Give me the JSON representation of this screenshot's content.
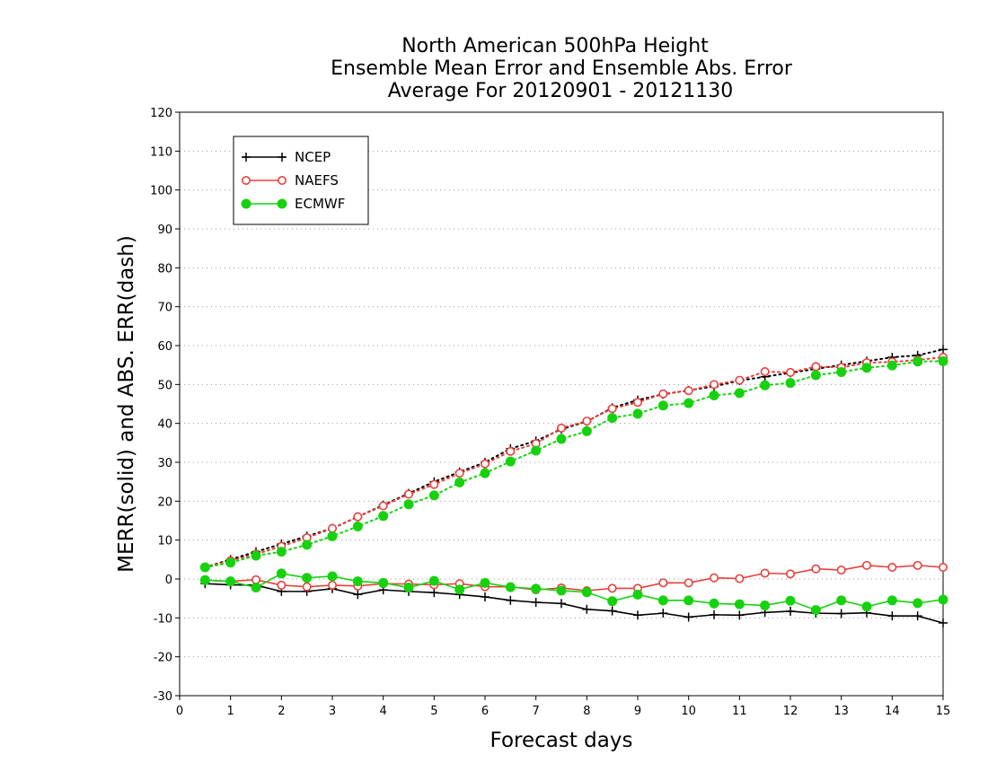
{
  "chart_data": {
    "type": "line",
    "title_lines": [
      "North American 500hPa Height",
      "Ensemble Mean Error and Ensemble Abs. Error",
      "Average For 20120901 - 20121130"
    ],
    "xlabel": "Forecast days",
    "ylabel": "MERR(solid) and ABS. ERR(dash)",
    "xlim": [
      0,
      15
    ],
    "ylim": [
      -30,
      120
    ],
    "xticks": [
      0,
      1,
      2,
      3,
      4,
      5,
      6,
      7,
      8,
      9,
      10,
      11,
      12,
      13,
      14,
      15
    ],
    "yticks": [
      -30,
      -20,
      -10,
      0,
      10,
      20,
      30,
      40,
      50,
      60,
      70,
      80,
      90,
      100,
      110,
      120
    ],
    "grid": "horizontal dotted",
    "legend_position": "top-left",
    "x": [
      0.5,
      1.0,
      1.5,
      2.0,
      2.5,
      3.0,
      3.5,
      4.0,
      4.5,
      5.0,
      5.5,
      6.0,
      6.5,
      7.0,
      7.5,
      8.0,
      8.5,
      9.0,
      9.5,
      10.0,
      10.5,
      11.0,
      11.5,
      12.0,
      12.5,
      13.0,
      13.5,
      14.0,
      14.5,
      15.0
    ],
    "series": [
      {
        "name": "NCEP",
        "color": "#000000",
        "marker": "plus",
        "mean_error": [
          -1.2,
          -1.5,
          -1.6,
          -3.2,
          -3.2,
          -2.5,
          -4.0,
          -2.8,
          -3.2,
          -3.5,
          -4.0,
          -4.6,
          -5.5,
          -6.0,
          -6.3,
          -7.8,
          -8.2,
          -9.3,
          -8.8,
          -9.8,
          -9.2,
          -9.3,
          -8.6,
          -8.3,
          -8.8,
          -8.9,
          -8.7,
          -9.5,
          -9.5,
          -11.3
        ],
        "abs_error": [
          3.0,
          5.0,
          7.0,
          9.0,
          11.0,
          13.0,
          16.0,
          19.0,
          22.0,
          25.0,
          27.5,
          30.0,
          33.5,
          35.5,
          38.5,
          40.5,
          44.0,
          46.0,
          47.5,
          48.5,
          49.5,
          51.0,
          52.0,
          53.0,
          54.0,
          55.0,
          56.0,
          57.0,
          57.5,
          59.0
        ]
      },
      {
        "name": "NAEFS",
        "color": "#e8403c",
        "marker": "open-circle",
        "mean_error": [
          -0.3,
          -0.6,
          -0.2,
          -1.6,
          -2.0,
          -1.6,
          -1.8,
          -1.2,
          -1.3,
          -1.5,
          -1.2,
          -2.0,
          -2.0,
          -2.8,
          -2.3,
          -3.0,
          -2.4,
          -2.4,
          -1.0,
          -1.0,
          0.3,
          0.1,
          1.5,
          1.3,
          2.6,
          2.3,
          3.5,
          3.0,
          3.5,
          3.0
        ],
        "abs_error": [
          3.0,
          4.7,
          6.4,
          8.4,
          10.6,
          13.0,
          16.0,
          18.8,
          21.8,
          24.3,
          27.2,
          29.6,
          32.8,
          34.8,
          38.8,
          40.6,
          43.8,
          45.4,
          47.6,
          48.4,
          50.0,
          51.1,
          53.3,
          53.1,
          54.6,
          54.4,
          55.6,
          55.8,
          56.3,
          57.0
        ]
      },
      {
        "name": "ECMWF",
        "color": "#16d20e",
        "marker": "filled-circle",
        "mean_error": [
          -0.3,
          -0.6,
          -2.2,
          1.4,
          0.3,
          0.7,
          -0.6,
          -1.0,
          -2.2,
          -0.5,
          -2.7,
          -1.0,
          -2.1,
          -2.5,
          -3.0,
          -3.4,
          -5.7,
          -4.0,
          -5.5,
          -5.5,
          -6.3,
          -6.5,
          -6.8,
          -5.6,
          -8.0,
          -5.5,
          -7.1,
          -5.5,
          -6.2,
          -5.3
        ],
        "abs_error": [
          3.0,
          4.2,
          6.0,
          7.0,
          8.8,
          11.0,
          13.5,
          16.2,
          19.2,
          21.5,
          24.8,
          27.2,
          30.2,
          33.0,
          36.0,
          38.0,
          41.4,
          42.5,
          44.6,
          45.2,
          47.2,
          47.8,
          49.8,
          50.4,
          52.4,
          53.2,
          54.3,
          54.9,
          55.9,
          56.0
        ]
      }
    ]
  }
}
